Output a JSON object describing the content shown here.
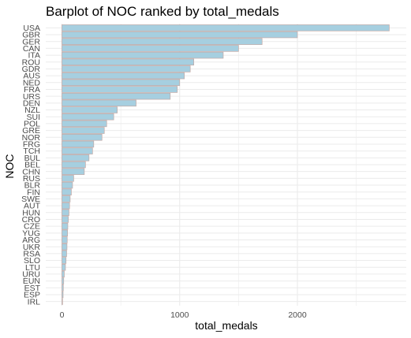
{
  "chart_data": {
    "type": "bar",
    "orientation": "horizontal",
    "title": "Barplot of NOC ranked by total_medals",
    "xlabel": "total_medals",
    "ylabel": "NOC",
    "xlim": [
      0,
      2850
    ],
    "x_ticks": [
      0,
      1000,
      2000
    ],
    "grid": true,
    "legend": "none",
    "colors": {
      "bar_fill": "#a6cfe0",
      "bar_stroke": "#c4a9a5",
      "grid": "#ebebeb"
    },
    "categories": [
      "USA",
      "GBR",
      "GER",
      "CAN",
      "ITA",
      "ROU",
      "GDR",
      "AUS",
      "NED",
      "FRA",
      "URS",
      "DEN",
      "NZL",
      "SUI",
      "POL",
      "GRE",
      "NOR",
      "FRG",
      "TCH",
      "BUL",
      "BEL",
      "CHN",
      "RUS",
      "BLR",
      "FIN",
      "SWE",
      "AUT",
      "HUN",
      "CRO",
      "CZE",
      "YUG",
      "ARG",
      "UKR",
      "RSA",
      "SLO",
      "LTU",
      "URU",
      "EUN",
      "EST",
      "ESP",
      "IRL"
    ],
    "values": [
      2780,
      2000,
      1700,
      1500,
      1370,
      1120,
      1090,
      1040,
      1000,
      980,
      920,
      630,
      470,
      440,
      380,
      360,
      340,
      270,
      260,
      230,
      200,
      190,
      100,
      90,
      80,
      70,
      65,
      60,
      55,
      50,
      48,
      45,
      43,
      40,
      35,
      30,
      20,
      15,
      12,
      10,
      5
    ]
  }
}
